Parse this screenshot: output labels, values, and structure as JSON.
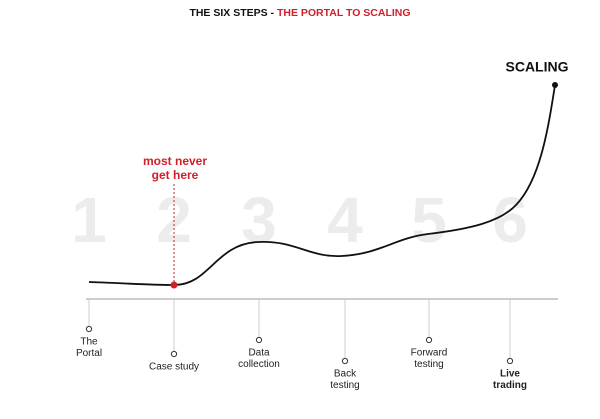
{
  "header": {
    "title_prefix": "THE SIX STEPS - ",
    "title_highlight": "THE PORTAL TO SCALING"
  },
  "annotation": {
    "lines": [
      "most never",
      "get here"
    ]
  },
  "end_label": "SCALING",
  "steps": [
    {
      "number": "1",
      "label_lines": [
        "The",
        "Portal"
      ],
      "bold": false
    },
    {
      "number": "2",
      "label_lines": [
        "Case study"
      ],
      "bold": false
    },
    {
      "number": "3",
      "label_lines": [
        "Data",
        "collection"
      ],
      "bold": false
    },
    {
      "number": "4",
      "label_lines": [
        "Back",
        "testing"
      ],
      "bold": false
    },
    {
      "number": "5",
      "label_lines": [
        "Forward",
        "testing"
      ],
      "bold": false
    },
    {
      "number": "6",
      "label_lines": [
        "Live",
        "trading"
      ],
      "bold": true
    }
  ]
}
